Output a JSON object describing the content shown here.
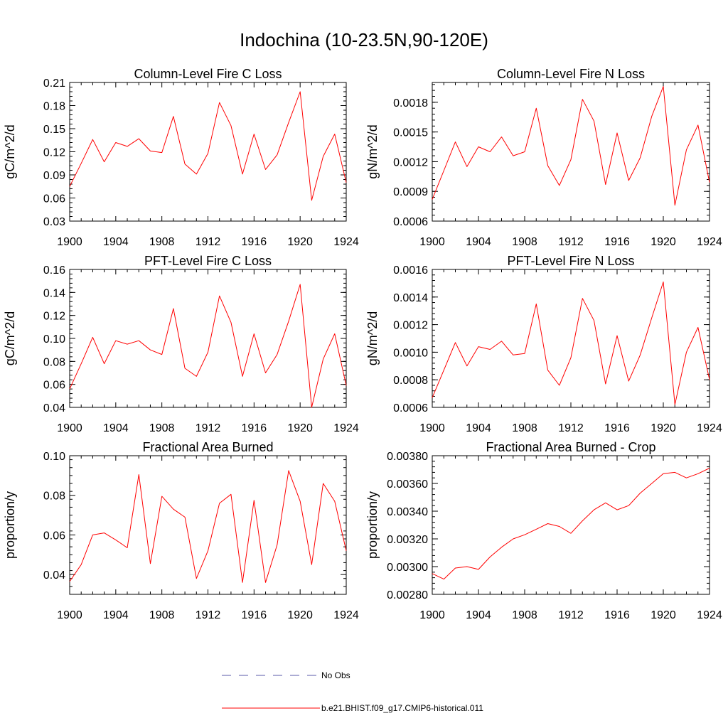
{
  "figure": {
    "title": "Indochina (10-23.5N,90-120E)"
  },
  "legend": {
    "obs_label": "No Obs",
    "obs_color": "#5a5aaa",
    "model_label": "b.e21.BHIST.f09_g17.CMIP6-historical.011",
    "model_color": "#ff0000"
  },
  "chart_data": [
    {
      "type": "line",
      "title": "Column-Level Fire C Loss",
      "ylabel": "gC/m^2/d",
      "xlim": [
        1900,
        1924
      ],
      "ylim": [
        0.03,
        0.21
      ],
      "xticks": [
        "1900",
        "1904",
        "1908",
        "1912",
        "1916",
        "1920",
        "1924"
      ],
      "yticks": [
        "0.03",
        "0.06",
        "0.09",
        "0.12",
        "0.15",
        "0.18",
        "0.21"
      ],
      "x": [
        1900,
        1901,
        1902,
        1903,
        1904,
        1905,
        1906,
        1907,
        1908,
        1909,
        1910,
        1911,
        1912,
        1913,
        1914,
        1915,
        1916,
        1917,
        1918,
        1919,
        1920,
        1921,
        1922,
        1923,
        1924
      ],
      "series": [
        {
          "values": [
            0.075,
            0.105,
            0.136,
            0.107,
            0.132,
            0.127,
            0.137,
            0.121,
            0.119,
            0.166,
            0.104,
            0.091,
            0.118,
            0.184,
            0.154,
            0.091,
            0.143,
            0.097,
            0.116,
            0.158,
            0.198,
            0.057,
            0.114,
            0.143,
            0.08
          ]
        }
      ]
    },
    {
      "type": "line",
      "title": "Column-Level Fire N Loss",
      "ylabel": "gN/m^2/d",
      "xlim": [
        1900,
        1924
      ],
      "ylim": [
        0.0006,
        0.002
      ],
      "xticks": [
        "1900",
        "1904",
        "1908",
        "1912",
        "1916",
        "1920",
        "1924"
      ],
      "yticks": [
        "0.0006",
        "0.0009",
        "0.0012",
        "0.0015",
        "0.0018"
      ],
      "x": [
        1900,
        1901,
        1902,
        1903,
        1904,
        1905,
        1906,
        1907,
        1908,
        1909,
        1910,
        1911,
        1912,
        1913,
        1914,
        1915,
        1916,
        1917,
        1918,
        1919,
        1920,
        1921,
        1922,
        1923,
        1924
      ],
      "series": [
        {
          "values": [
            0.00082,
            0.00111,
            0.0014,
            0.00115,
            0.00135,
            0.0013,
            0.00145,
            0.00126,
            0.0013,
            0.00174,
            0.00116,
            0.00096,
            0.00122,
            0.00183,
            0.00161,
            0.00097,
            0.00149,
            0.00101,
            0.00124,
            0.00166,
            0.00196,
            0.00076,
            0.00132,
            0.00157,
            0.00099
          ]
        }
      ]
    },
    {
      "type": "line",
      "title": "PFT-Level Fire C Loss",
      "ylabel": "gC/m^2/d",
      "xlim": [
        1900,
        1924
      ],
      "ylim": [
        0.04,
        0.16
      ],
      "xticks": [
        "1900",
        "1904",
        "1908",
        "1912",
        "1916",
        "1920",
        "1924"
      ],
      "yticks": [
        "0.04",
        "0.06",
        "0.08",
        "0.10",
        "0.12",
        "0.14",
        "0.16"
      ],
      "x": [
        1900,
        1901,
        1902,
        1903,
        1904,
        1905,
        1906,
        1907,
        1908,
        1909,
        1910,
        1911,
        1912,
        1913,
        1914,
        1915,
        1916,
        1917,
        1918,
        1919,
        1920,
        1921,
        1922,
        1923,
        1924
      ],
      "series": [
        {
          "values": [
            0.056,
            0.078,
            0.101,
            0.078,
            0.098,
            0.095,
            0.098,
            0.09,
            0.086,
            0.126,
            0.074,
            0.067,
            0.088,
            0.137,
            0.114,
            0.067,
            0.104,
            0.07,
            0.086,
            0.115,
            0.147,
            0.04,
            0.082,
            0.104,
            0.059
          ]
        }
      ]
    },
    {
      "type": "line",
      "title": "PFT-Level Fire N Loss",
      "ylabel": "gN/m^2/d",
      "xlim": [
        1900,
        1924
      ],
      "ylim": [
        0.0006,
        0.0016
      ],
      "xticks": [
        "1900",
        "1904",
        "1908",
        "1912",
        "1916",
        "1920",
        "1924"
      ],
      "yticks": [
        "0.0006",
        "0.0008",
        "0.0010",
        "0.0012",
        "0.0014",
        "0.0016"
      ],
      "x": [
        1900,
        1901,
        1902,
        1903,
        1904,
        1905,
        1906,
        1907,
        1908,
        1909,
        1910,
        1911,
        1912,
        1913,
        1914,
        1915,
        1916,
        1917,
        1918,
        1919,
        1920,
        1921,
        1922,
        1923,
        1924
      ],
      "series": [
        {
          "values": [
            0.00067,
            0.00087,
            0.00107,
            0.0009,
            0.00104,
            0.00102,
            0.00108,
            0.00098,
            0.00099,
            0.00135,
            0.00087,
            0.00076,
            0.00096,
            0.00139,
            0.00123,
            0.00077,
            0.00112,
            0.00079,
            0.00098,
            0.00125,
            0.00151,
            0.00062,
            0.001,
            0.00118,
            0.0008
          ]
        }
      ]
    },
    {
      "type": "line",
      "title": "Fractional Area Burned",
      "ylabel": "proportion/y",
      "xlim": [
        1900,
        1924
      ],
      "ylim": [
        0.03,
        0.1
      ],
      "xticks": [
        "1900",
        "1904",
        "1908",
        "1912",
        "1916",
        "1920",
        "1924"
      ],
      "yticks": [
        "0.04",
        "0.06",
        "0.08",
        "0.10"
      ],
      "x": [
        1900,
        1901,
        1902,
        1903,
        1904,
        1905,
        1906,
        1907,
        1908,
        1909,
        1910,
        1911,
        1912,
        1913,
        1914,
        1915,
        1916,
        1917,
        1918,
        1919,
        1920,
        1921,
        1922,
        1923,
        1924
      ],
      "series": [
        {
          "values": [
            0.0365,
            0.045,
            0.06,
            0.061,
            0.0575,
            0.0535,
            0.0905,
            0.0455,
            0.0795,
            0.073,
            0.069,
            0.038,
            0.052,
            0.076,
            0.0805,
            0.036,
            0.0775,
            0.036,
            0.055,
            0.0925,
            0.077,
            0.045,
            0.086,
            0.077,
            0.052
          ]
        }
      ]
    },
    {
      "type": "line",
      "title": "Fractional Area Burned - Crop",
      "ylabel": "proportion/y",
      "xlim": [
        1900,
        1924
      ],
      "ylim": [
        0.0028,
        0.0038
      ],
      "xticks": [
        "1900",
        "1904",
        "1908",
        "1912",
        "1916",
        "1920",
        "1924"
      ],
      "yticks": [
        "0.00280",
        "0.00300",
        "0.00320",
        "0.00340",
        "0.00360",
        "0.00380"
      ],
      "x": [
        1900,
        1901,
        1902,
        1903,
        1904,
        1905,
        1906,
        1907,
        1908,
        1909,
        1910,
        1911,
        1912,
        1913,
        1914,
        1915,
        1916,
        1917,
        1918,
        1919,
        1920,
        1921,
        1922,
        1923,
        1924
      ],
      "series": [
        {
          "values": [
            0.00295,
            0.00291,
            0.00299,
            0.003,
            0.00298,
            0.00307,
            0.00314,
            0.0032,
            0.00323,
            0.00327,
            0.00331,
            0.00329,
            0.00324,
            0.00333,
            0.00341,
            0.00346,
            0.00341,
            0.00344,
            0.00353,
            0.0036,
            0.00367,
            0.00368,
            0.00364,
            0.00367,
            0.00371
          ]
        }
      ]
    }
  ]
}
